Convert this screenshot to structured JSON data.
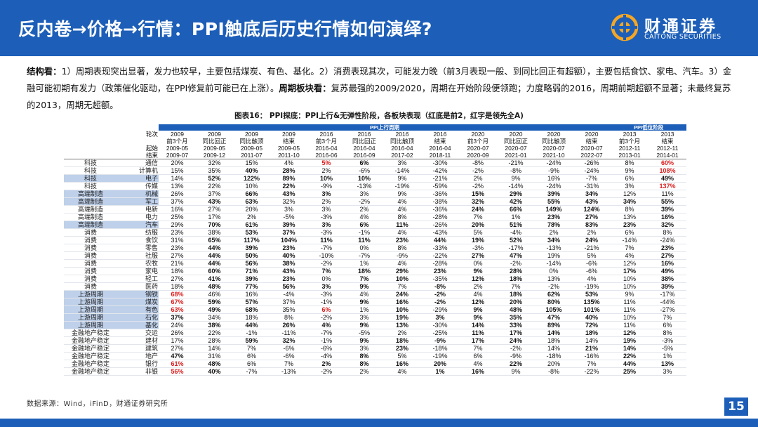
{
  "header": {
    "title": "反内卷→价格→行情：PPI触底后历史行情如何演绎?"
  },
  "logo": {
    "cn": "财通证券",
    "en": "CAITONG SECURITIES"
  },
  "body": {
    "label1": "结构看：",
    "text1": "1）周期表现突出显著，发力也较早，主要包括煤炭、有色、基化。2）消费表现其次，可能发力晚（前3月表现一般、到同比回正有超额），主要包括食饮、家电、汽车。3）金融可能初期有发力（政策催化驱动，在PPI修复前可能已在上涨）。",
    "label2": "周期板块看：",
    "text2": "复苏最强的2009/2020，周期在开始阶段便领跑；力度略弱的2016，周期前期超额不显著；未最终复苏的2013，周期无超额。"
  },
  "figure": {
    "title": "图表16：  PPI探底：PPI上行&无弹性阶段，各板块表现（红底是前2，红字是领先全A)"
  },
  "table": {
    "group_up": "PPI上行周期",
    "group_low": "PPI低位阶段",
    "header_rows": [
      [
        "",
        "轮次",
        "2009",
        "2009",
        "2009",
        "2009",
        "2016",
        "2016",
        "2016",
        "2016",
        "2020",
        "2020",
        "2020",
        "2020",
        "2013",
        "2013"
      ],
      [
        "",
        "",
        "前3个月",
        "同比回正",
        "同比触顶",
        "结束",
        "前3个月",
        "同比回正",
        "同比触顶",
        "结束",
        "前3个月",
        "同比回正",
        "同比触顶",
        "结束",
        "前3个月",
        "结束"
      ],
      [
        "",
        "起始",
        "2009-05",
        "2009-05",
        "2009-05",
        "2009-05",
        "2016-04",
        "2016-04",
        "2016-04",
        "2016-04",
        "2020-07",
        "2020-07",
        "2020-07",
        "2020-07",
        "2012-11",
        "2012-11"
      ],
      [
        "",
        "结束",
        "2009-07",
        "2009-12",
        "2011-07",
        "2011-10",
        "2016-06",
        "2016-09",
        "2017-02",
        "2018-11",
        "2020-09",
        "2021-01",
        "2021-10",
        "2022-07",
        "2013-01",
        "2014-01"
      ]
    ],
    "rows": [
      {
        "sector": "科技",
        "industry": "通信",
        "hl": false,
        "values": [
          "20%",
          "32%",
          "15%",
          "4%",
          "5%",
          "6%",
          "3%",
          "-30%",
          "-8%",
          "-21%",
          "-24%",
          "-26%",
          "8%",
          "60%"
        ],
        "red": [
          4,
          13
        ],
        "bold": [
          4,
          5,
          13
        ]
      },
      {
        "sector": "科技",
        "industry": "计算机",
        "hl": false,
        "values": [
          "15%",
          "35%",
          "40%",
          "28%",
          "2%",
          "-6%",
          "-14%",
          "-42%",
          "-2%",
          "-8%",
          "-9%",
          "-24%",
          "9%",
          "108%"
        ],
        "red": [
          13
        ],
        "bold": [
          2,
          3,
          13
        ]
      },
      {
        "sector": "科技",
        "industry": "电子",
        "hl": true,
        "values": [
          "14%",
          "52%",
          "122%",
          "89%",
          "10%",
          "10%",
          "9%",
          "-21%",
          "2%",
          "9%",
          "16%",
          "-7%",
          "6%",
          "49%"
        ],
        "red": [],
        "bold": [
          1,
          2,
          3,
          4,
          5,
          13
        ]
      },
      {
        "sector": "科技",
        "industry": "传媒",
        "hl": false,
        "values": [
          "13%",
          "22%",
          "10%",
          "22%",
          "-9%",
          "-13%",
          "-19%",
          "-59%",
          "-2%",
          "-14%",
          "-24%",
          "-31%",
          "3%",
          "137%"
        ],
        "red": [
          13
        ],
        "bold": [
          3,
          13
        ]
      },
      {
        "sector": "高端制造",
        "industry": "机械",
        "hl": true,
        "values": [
          "26%",
          "37%",
          "66%",
          "43%",
          "3%",
          "3%",
          "9%",
          "-36%",
          "15%",
          "29%",
          "39%",
          "34%",
          "12%",
          "11%"
        ],
        "red": [],
        "bold": [
          2,
          3,
          4,
          8,
          9,
          10,
          11
        ]
      },
      {
        "sector": "高端制造",
        "industry": "军工",
        "hl": true,
        "values": [
          "37%",
          "43%",
          "63%",
          "32%",
          "2%",
          "-2%",
          "4%",
          "-38%",
          "32%",
          "42%",
          "55%",
          "43%",
          "34%",
          "55%"
        ],
        "red": [],
        "bold": [
          1,
          2,
          8,
          9,
          10,
          11,
          12,
          13
        ]
      },
      {
        "sector": "高端制造",
        "industry": "电新",
        "hl": false,
        "values": [
          "16%",
          "27%",
          "20%",
          "3%",
          "3%",
          "2%",
          "4%",
          "-36%",
          "24%",
          "66%",
          "149%",
          "124%",
          "8%",
          "39%"
        ],
        "red": [],
        "bold": [
          8,
          9,
          10,
          11,
          13
        ]
      },
      {
        "sector": "高端制造",
        "industry": "电力",
        "hl": false,
        "values": [
          "25%",
          "17%",
          "2%",
          "-5%",
          "-3%",
          "4%",
          "8%",
          "-28%",
          "7%",
          "1%",
          "23%",
          "27%",
          "13%",
          "16%"
        ],
        "red": [],
        "bold": [
          10,
          11,
          13
        ]
      },
      {
        "sector": "高端制造",
        "industry": "汽车",
        "hl": true,
        "values": [
          "29%",
          "70%",
          "61%",
          "39%",
          "3%",
          "6%",
          "11%",
          "-26%",
          "20%",
          "51%",
          "78%",
          "83%",
          "23%",
          "32%"
        ],
        "red": [],
        "bold": [
          1,
          2,
          3,
          4,
          5,
          6,
          8,
          9,
          10,
          11,
          12,
          13
        ]
      },
      {
        "sector": "消费",
        "industry": "纺服",
        "hl": false,
        "values": [
          "23%",
          "38%",
          "53%",
          "37%",
          "-3%",
          "-1%",
          "4%",
          "-43%",
          "5%",
          "-4%",
          "2%",
          "2%",
          "6%",
          "8%"
        ],
        "red": [],
        "bold": [
          2,
          3
        ]
      },
      {
        "sector": "消费",
        "industry": "食饮",
        "hl": false,
        "values": [
          "31%",
          "65%",
          "117%",
          "104%",
          "11%",
          "11%",
          "23%",
          "44%",
          "19%",
          "52%",
          "34%",
          "24%",
          "-14%",
          "-24%"
        ],
        "red": [],
        "bold": [
          1,
          2,
          3,
          4,
          5,
          6,
          7,
          8,
          9,
          10,
          11
        ]
      },
      {
        "sector": "消费",
        "industry": "零售",
        "hl": false,
        "values": [
          "23%",
          "44%",
          "39%",
          "23%",
          "-7%",
          "0%",
          "8%",
          "-33%",
          "-3%",
          "-17%",
          "-13%",
          "-21%",
          "7%",
          "23%"
        ],
        "red": [],
        "bold": [
          1,
          2,
          3,
          13
        ]
      },
      {
        "sector": "消费",
        "industry": "社服",
        "hl": false,
        "values": [
          "27%",
          "44%",
          "50%",
          "40%",
          "-10%",
          "-7%",
          "-9%",
          "-22%",
          "27%",
          "47%",
          "19%",
          "5%",
          "4%",
          "27%"
        ],
        "red": [],
        "bold": [
          1,
          2,
          3,
          8,
          9,
          13
        ]
      },
      {
        "sector": "消费",
        "industry": "农牧",
        "hl": false,
        "values": [
          "21%",
          "44%",
          "56%",
          "38%",
          "-2%",
          "1%",
          "4%",
          "-28%",
          "0%",
          "-2%",
          "-14%",
          "-6%",
          "12%",
          "16%"
        ],
        "red": [],
        "bold": [
          1,
          2,
          3,
          13
        ]
      },
      {
        "sector": "消费",
        "industry": "家电",
        "hl": false,
        "values": [
          "18%",
          "60%",
          "71%",
          "43%",
          "7%",
          "18%",
          "29%",
          "23%",
          "9%",
          "28%",
          "0%",
          "-6%",
          "17%",
          "49%"
        ],
        "red": [],
        "bold": [
          1,
          2,
          3,
          4,
          5,
          6,
          7,
          8,
          9,
          12,
          13
        ]
      },
      {
        "sector": "消费",
        "industry": "轻工",
        "hl": false,
        "values": [
          "27%",
          "41%",
          "39%",
          "23%",
          "0%",
          "7%",
          "10%",
          "-35%",
          "12%",
          "18%",
          "13%",
          "4%",
          "10%",
          "38%"
        ],
        "red": [],
        "bold": [
          1,
          2,
          3,
          5,
          6,
          8,
          9,
          13
        ]
      },
      {
        "sector": "消费",
        "industry": "医药",
        "hl": false,
        "values": [
          "18%",
          "48%",
          "77%",
          "56%",
          "3%",
          "9%",
          "7%",
          "-8%",
          "2%",
          "7%",
          "-2%",
          "-19%",
          "10%",
          "39%"
        ],
        "red": [],
        "bold": [
          1,
          2,
          3,
          4,
          5,
          7,
          13
        ]
      },
      {
        "sector": "上游周期",
        "industry": "钢铁",
        "hl": true,
        "values": [
          "68%",
          "46%",
          "16%",
          "-4%",
          "-3%",
          "4%",
          "24%",
          "-2%",
          "4%",
          "18%",
          "62%",
          "53%",
          "9%",
          "-17%"
        ],
        "red": [
          0
        ],
        "bold": [
          0,
          6,
          7,
          9,
          10,
          11
        ]
      },
      {
        "sector": "上游周期",
        "industry": "煤炭",
        "hl": true,
        "values": [
          "67%",
          "59%",
          "57%",
          "37%",
          "-1%",
          "9%",
          "16%",
          "-2%",
          "12%",
          "20%",
          "80%",
          "135%",
          "11%",
          "-44%"
        ],
        "red": [
          0
        ],
        "bold": [
          0,
          1,
          2,
          5,
          6,
          7,
          8,
          9,
          10,
          11
        ]
      },
      {
        "sector": "上游周期",
        "industry": "有色",
        "hl": true,
        "values": [
          "63%",
          "49%",
          "68%",
          "35%",
          "6%",
          "1%",
          "10%",
          "-29%",
          "9%",
          "48%",
          "105%",
          "101%",
          "11%",
          "-27%"
        ],
        "red": [
          0,
          4
        ],
        "bold": [
          0,
          1,
          2,
          4,
          6,
          8,
          9,
          10,
          11
        ]
      },
      {
        "sector": "上游周期",
        "industry": "石化",
        "hl": true,
        "values": [
          "37%",
          "34%",
          "18%",
          "8%",
          "-2%",
          "3%",
          "19%",
          "3%",
          "9%",
          "35%",
          "47%",
          "40%",
          "10%",
          "7%"
        ],
        "red": [],
        "bold": [
          0,
          6,
          7,
          8,
          9,
          10,
          11
        ]
      },
      {
        "sector": "上游周期",
        "industry": "基化",
        "hl": true,
        "values": [
          "24%",
          "38%",
          "44%",
          "26%",
          "4%",
          "9%",
          "13%",
          "-30%",
          "14%",
          "33%",
          "89%",
          "72%",
          "11%",
          "6%"
        ],
        "red": [],
        "bold": [
          1,
          2,
          3,
          4,
          5,
          6,
          8,
          9,
          10,
          11
        ]
      },
      {
        "sector": "金融地产稳定",
        "industry": "交运",
        "hl": false,
        "values": [
          "26%",
          "22%",
          "-1%",
          "-11%",
          "-7%",
          "-5%",
          "2%",
          "-25%",
          "11%",
          "17%",
          "14%",
          "18%",
          "12%",
          "8%"
        ],
        "red": [],
        "bold": [
          8,
          9,
          10,
          11,
          12
        ]
      },
      {
        "sector": "金融地产稳定",
        "industry": "建材",
        "hl": false,
        "values": [
          "17%",
          "28%",
          "59%",
          "32%",
          "-1%",
          "9%",
          "18%",
          "-9%",
          "17%",
          "24%",
          "18%",
          "14%",
          "19%",
          "-3%"
        ],
        "red": [],
        "bold": [
          2,
          3,
          5,
          6,
          7,
          8,
          9,
          12
        ]
      },
      {
        "sector": "金融地产稳定",
        "industry": "建筑",
        "hl": false,
        "values": [
          "27%",
          "14%",
          "7%",
          "-6%",
          "-6%",
          "3%",
          "23%",
          "-18%",
          "7%",
          "-2%",
          "14%",
          "21%",
          "14%",
          "-5%"
        ],
        "red": [],
        "bold": [
          6,
          11,
          12
        ]
      },
      {
        "sector": "金融地产稳定",
        "industry": "地产",
        "hl": false,
        "values": [
          "47%",
          "31%",
          "6%",
          "-6%",
          "-4%",
          "8%",
          "5%",
          "-19%",
          "6%",
          "-9%",
          "-18%",
          "-16%",
          "22%",
          "1%"
        ],
        "red": [],
        "bold": [
          0,
          5,
          12
        ]
      },
      {
        "sector": "金融地产稳定",
        "industry": "银行",
        "hl": false,
        "values": [
          "61%",
          "48%",
          "6%",
          "7%",
          "2%",
          "8%",
          "16%",
          "20%",
          "4%",
          "22%",
          "20%",
          "7%",
          "44%",
          "13%"
        ],
        "red": [
          0
        ],
        "bold": [
          0,
          1,
          4,
          5,
          6,
          7,
          9,
          12,
          13
        ]
      },
      {
        "sector": "金融地产稳定",
        "industry": "非银",
        "hl": false,
        "values": [
          "56%",
          "40%",
          "-7%",
          "-13%",
          "-2%",
          "2%",
          "4%",
          "1%",
          "16%",
          "9%",
          "-8%",
          "-22%",
          "25%",
          "3%"
        ],
        "red": [
          0
        ],
        "bold": [
          0,
          1,
          7,
          8,
          12
        ]
      }
    ]
  },
  "footer": {
    "source": "数据来源：Wind，iFinD，财通证券研究所",
    "page": "15"
  },
  "colors": {
    "brand_blue": "#1d5fb8",
    "highlight": "#bed0ea",
    "red_text": "#d91c1c"
  }
}
